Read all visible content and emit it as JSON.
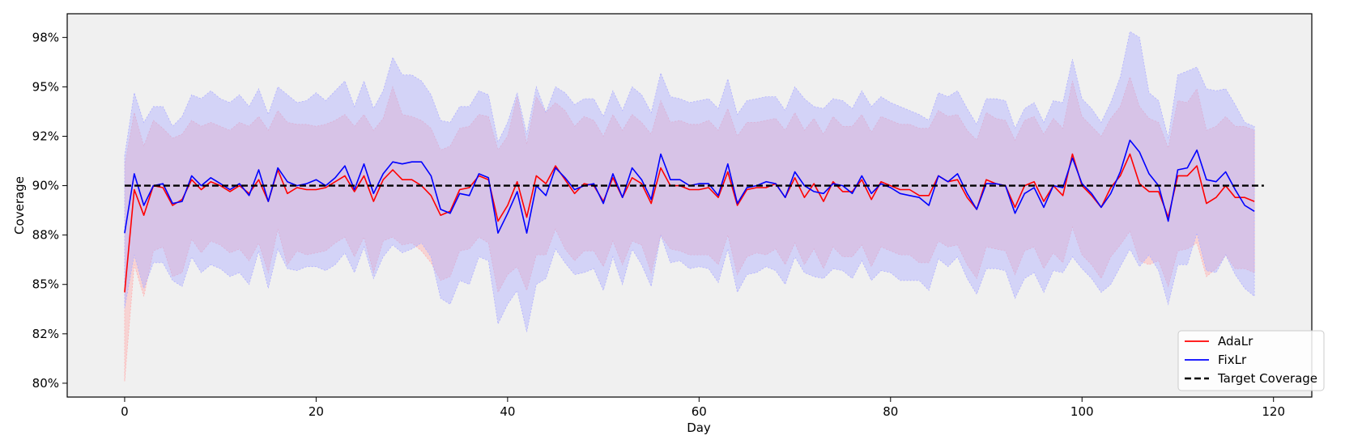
{
  "chart_data": {
    "type": "line",
    "xlabel": "Day",
    "ylabel": "Coverage",
    "xlim": [
      -6,
      124
    ],
    "ylim": [
      79.3,
      98.7
    ],
    "x_ticks": [
      0,
      20,
      40,
      60,
      80,
      100,
      120
    ],
    "y_ticks": [
      80,
      82.5,
      85,
      87.5,
      90,
      92.5,
      95,
      97.5
    ],
    "y_tick_labels": [
      "80%",
      "82%",
      "85%",
      "88%",
      "90%",
      "92%",
      "95%",
      "98%"
    ],
    "plot_background": "#f0f0f0",
    "grid": false,
    "legend_position": "lower-right",
    "target": {
      "name": "Target Coverage",
      "value": 90,
      "color": "#000000"
    },
    "series": [
      {
        "name": "AdaLr",
        "color": "#ff0000",
        "band_color": "#ffb0b0",
        "values": [
          84.6,
          89.8,
          88.5,
          90.0,
          89.9,
          89.0,
          89.3,
          90.3,
          89.8,
          90.2,
          90.0,
          89.7,
          90.0,
          89.6,
          90.3,
          89.2,
          90.8,
          89.6,
          89.9,
          89.8,
          89.8,
          89.9,
          90.2,
          90.5,
          89.7,
          90.5,
          89.2,
          90.3,
          90.8,
          90.3,
          90.3,
          90.0,
          89.5,
          88.5,
          88.7,
          89.8,
          89.9,
          90.5,
          90.3,
          88.2,
          89.0,
          90.2,
          88.4,
          90.5,
          90.1,
          91.0,
          90.3,
          89.6,
          90.1,
          90.0,
          89.2,
          90.4,
          89.4,
          90.4,
          90.1,
          89.1,
          90.9,
          90.0,
          90.0,
          89.8,
          89.8,
          89.9,
          89.4,
          90.7,
          89.0,
          89.8,
          89.9,
          89.9,
          90.1,
          89.4,
          90.4,
          89.4,
          90.1,
          89.2,
          90.2,
          89.7,
          89.7,
          90.3,
          89.3,
          90.2,
          90.0,
          89.8,
          89.8,
          89.5,
          89.5,
          90.5,
          90.2,
          90.3,
          89.4,
          88.8,
          90.3,
          90.1,
          90.0,
          88.9,
          90.0,
          90.2,
          89.2,
          90.0,
          89.5,
          91.6,
          90.0,
          89.5,
          88.9,
          89.9,
          90.5,
          91.6,
          90.1,
          89.7,
          89.7,
          88.4,
          90.5,
          90.5,
          91.0,
          89.1,
          89.4,
          90.0,
          89.4,
          89.4,
          89.2
        ],
        "upper": [
          91.0,
          93.7,
          92.0,
          93.3,
          92.9,
          92.4,
          92.6,
          93.3,
          93.0,
          93.2,
          93.0,
          92.8,
          93.2,
          93.0,
          93.5,
          92.8,
          93.8,
          93.2,
          93.1,
          93.1,
          93.0,
          93.1,
          93.3,
          93.6,
          93.0,
          93.6,
          92.8,
          93.4,
          95.0,
          93.6,
          93.5,
          93.3,
          92.9,
          91.8,
          92.0,
          92.9,
          93.0,
          93.6,
          93.5,
          91.8,
          92.5,
          94.5,
          92.1,
          94.5,
          93.7,
          94.2,
          93.8,
          93.0,
          93.5,
          93.3,
          92.5,
          93.6,
          92.8,
          93.6,
          93.2,
          92.6,
          94.3,
          93.2,
          93.3,
          93.1,
          93.1,
          93.3,
          92.8,
          93.9,
          92.5,
          93.2,
          93.2,
          93.3,
          93.4,
          92.8,
          93.7,
          92.8,
          93.4,
          92.6,
          93.5,
          93.0,
          93.0,
          93.6,
          92.7,
          93.5,
          93.3,
          93.1,
          93.1,
          92.9,
          92.9,
          93.8,
          93.5,
          93.6,
          92.8,
          92.3,
          93.7,
          93.4,
          93.3,
          92.3,
          93.3,
          93.5,
          92.6,
          93.4,
          92.9,
          95.3,
          93.5,
          93.0,
          92.5,
          93.4,
          94.0,
          95.5,
          94.0,
          93.4,
          93.2,
          91.9,
          94.3,
          94.2,
          94.9,
          92.8,
          93.0,
          93.5,
          93.0,
          93.0,
          92.8
        ],
        "lower": [
          80.1,
          86.0,
          84.4,
          86.7,
          86.9,
          85.4,
          85.6,
          87.3,
          86.6,
          87.2,
          87.0,
          86.6,
          86.8,
          86.2,
          87.1,
          85.6,
          87.8,
          86.0,
          86.7,
          86.5,
          86.6,
          86.7,
          87.1,
          87.4,
          86.4,
          87.4,
          85.6,
          87.2,
          87.4,
          87.0,
          87.1,
          86.7,
          86.1,
          85.2,
          85.4,
          86.7,
          86.8,
          87.4,
          87.1,
          84.6,
          85.5,
          85.9,
          84.7,
          86.5,
          86.5,
          87.8,
          86.8,
          86.2,
          86.7,
          86.7,
          85.9,
          87.2,
          86.0,
          87.2,
          87.0,
          85.6,
          87.5,
          86.8,
          86.7,
          86.5,
          86.5,
          86.5,
          86.0,
          87.5,
          85.5,
          86.4,
          86.6,
          86.5,
          86.8,
          86.0,
          87.1,
          86.0,
          86.8,
          85.8,
          86.9,
          86.4,
          86.4,
          87.0,
          85.9,
          86.9,
          86.7,
          86.5,
          86.5,
          86.1,
          86.1,
          87.2,
          86.9,
          87.0,
          86.0,
          85.3,
          86.9,
          86.8,
          86.7,
          85.5,
          86.7,
          86.9,
          85.8,
          86.6,
          86.1,
          87.9,
          86.5,
          86.0,
          85.3,
          86.4,
          87.0,
          87.7,
          86.2,
          86.0,
          86.2,
          84.9,
          86.7,
          86.8,
          87.1,
          85.4,
          85.8,
          86.5,
          85.8,
          85.8,
          85.6
        ]
      },
      {
        "name": "FixLr",
        "color": "#0000ff",
        "band_color": "#b0b0ff",
        "values": [
          87.6,
          90.6,
          89.0,
          90.0,
          90.1,
          89.1,
          89.2,
          90.5,
          90.0,
          90.4,
          90.1,
          89.8,
          90.1,
          89.5,
          90.8,
          89.2,
          90.9,
          90.2,
          90.0,
          90.1,
          90.3,
          90.0,
          90.4,
          91.0,
          89.8,
          91.1,
          89.6,
          90.6,
          91.2,
          91.1,
          91.2,
          91.2,
          90.5,
          88.8,
          88.6,
          89.6,
          89.5,
          90.6,
          90.4,
          87.6,
          88.6,
          89.7,
          87.6,
          90.0,
          89.5,
          90.9,
          90.4,
          89.8,
          90.0,
          90.1,
          89.1,
          90.6,
          89.4,
          90.9,
          90.3,
          89.3,
          91.6,
          90.3,
          90.3,
          90.0,
          90.1,
          90.1,
          89.5,
          91.1,
          89.1,
          89.9,
          90.0,
          90.2,
          90.1,
          89.4,
          90.7,
          90.0,
          89.7,
          89.6,
          90.1,
          90.0,
          89.6,
          90.5,
          89.6,
          90.1,
          89.9,
          89.6,
          89.5,
          89.4,
          89.0,
          90.5,
          90.2,
          90.6,
          89.6,
          88.8,
          90.1,
          90.1,
          90.0,
          88.6,
          89.6,
          89.9,
          88.9,
          90.0,
          89.9,
          91.4,
          90.1,
          89.6,
          88.9,
          89.6,
          90.7,
          92.3,
          91.7,
          90.6,
          90.0,
          88.2,
          90.8,
          90.9,
          91.8,
          90.3,
          90.2,
          90.7,
          89.8,
          89.0,
          88.7
        ],
        "upper": [
          91.5,
          94.7,
          93.2,
          94.0,
          94.0,
          93.0,
          93.5,
          94.6,
          94.4,
          94.8,
          94.4,
          94.2,
          94.6,
          94.0,
          94.9,
          93.6,
          95.0,
          94.6,
          94.2,
          94.3,
          94.7,
          94.3,
          94.8,
          95.3,
          94.0,
          95.3,
          93.9,
          94.8,
          96.5,
          95.6,
          95.6,
          95.3,
          94.6,
          93.3,
          93.2,
          94.0,
          94.0,
          94.8,
          94.6,
          92.2,
          93.2,
          94.7,
          92.6,
          95.0,
          93.7,
          95.0,
          94.7,
          94.1,
          94.4,
          94.4,
          93.5,
          94.8,
          93.8,
          95.0,
          94.6,
          93.7,
          95.7,
          94.5,
          94.4,
          94.2,
          94.3,
          94.4,
          93.9,
          95.4,
          93.6,
          94.3,
          94.4,
          94.5,
          94.5,
          93.8,
          95.0,
          94.4,
          94.0,
          93.9,
          94.4,
          94.3,
          93.9,
          94.8,
          94.0,
          94.5,
          94.2,
          94.0,
          93.8,
          93.6,
          93.3,
          94.7,
          94.5,
          94.8,
          93.9,
          93.1,
          94.4,
          94.4,
          94.3,
          92.9,
          93.9,
          94.2,
          93.2,
          94.3,
          94.2,
          96.4,
          94.4,
          93.9,
          93.2,
          94.2,
          95.5,
          97.8,
          97.5,
          94.7,
          94.3,
          92.4,
          95.6,
          95.8,
          96.0,
          94.9,
          94.8,
          94.9,
          94.1,
          93.2,
          93.0
        ],
        "lower": [
          83.8,
          86.5,
          84.8,
          86.1,
          86.1,
          85.2,
          84.9,
          86.4,
          85.6,
          86.0,
          85.8,
          85.4,
          85.6,
          85.0,
          86.7,
          84.8,
          86.8,
          85.8,
          85.7,
          85.9,
          85.9,
          85.7,
          86.0,
          86.6,
          85.6,
          86.9,
          85.3,
          86.4,
          87.0,
          86.6,
          86.8,
          87.1,
          86.4,
          84.3,
          84.0,
          85.2,
          85.0,
          86.4,
          86.2,
          83.0,
          84.0,
          84.7,
          82.6,
          85.0,
          85.3,
          86.8,
          86.1,
          85.5,
          85.6,
          85.8,
          84.7,
          86.4,
          85.0,
          86.8,
          86.0,
          84.9,
          87.5,
          86.1,
          86.2,
          85.8,
          85.9,
          85.8,
          85.1,
          86.8,
          84.6,
          85.5,
          85.6,
          85.9,
          85.7,
          85.0,
          86.4,
          85.6,
          85.4,
          85.3,
          85.8,
          85.7,
          85.3,
          86.2,
          85.2,
          85.7,
          85.6,
          85.2,
          85.2,
          85.2,
          84.7,
          86.3,
          85.9,
          86.4,
          85.3,
          84.5,
          85.8,
          85.8,
          85.7,
          84.3,
          85.3,
          85.6,
          84.6,
          85.7,
          85.6,
          86.4,
          85.8,
          85.3,
          84.6,
          85.0,
          85.9,
          86.8,
          85.9,
          86.5,
          85.7,
          84.0,
          86.0,
          86.0,
          87.6,
          85.7,
          85.6,
          86.5,
          85.5,
          84.8,
          84.4
        ]
      }
    ]
  }
}
